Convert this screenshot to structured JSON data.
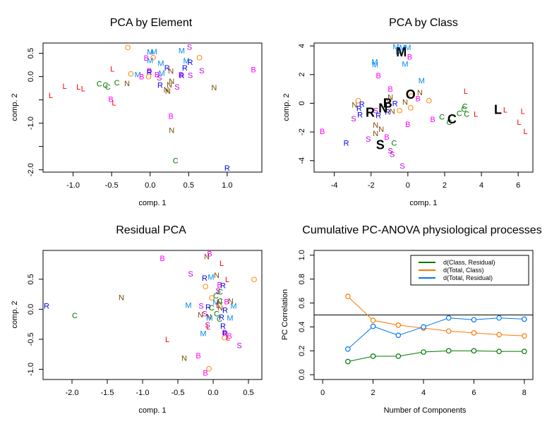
{
  "class_colors": {
    "B": "#ff00ff",
    "C": "#007700",
    "L": "#ff0000",
    "M": "#0088ee",
    "N": "#7a4a00",
    "O": "#ff8800",
    "R": "#0000ee",
    "S": "#bb00dd"
  },
  "chart_data": [
    {
      "type": "scatter",
      "title": "PCA by Element",
      "xlabel": "comp. 1",
      "ylabel": "comp. 2",
      "xticks": [
        -1.0,
        -0.5,
        0.0,
        0.5,
        1.0
      ],
      "xtick_labels": [
        "-1.0",
        "-0.5",
        "0.0",
        "0.5",
        "1.0"
      ],
      "yticks": [
        0.5,
        0.0,
        -0.5,
        -1.0,
        -1.5,
        -2.0
      ],
      "ytick_labels": [
        "0.5",
        "0.0",
        "",
        "-1.0",
        "",
        "-2.0"
      ],
      "xlim": [
        -1.39,
        1.45
      ],
      "ylim": [
        -2.05,
        0.72
      ],
      "points": [
        {
          "label": "O",
          "x": -0.29,
          "y": 0.63
        },
        {
          "label": "S",
          "x": 0.51,
          "y": 0.64
        },
        {
          "label": "M",
          "x": 0.0,
          "y": 0.53
        },
        {
          "label": "M",
          "x": 0.05,
          "y": 0.54
        },
        {
          "label": "M",
          "x": 0.41,
          "y": 0.56
        },
        {
          "label": "B",
          "x": -0.05,
          "y": 0.4
        },
        {
          "label": "O",
          "x": 0.04,
          "y": 0.41
        },
        {
          "label": "M",
          "x": 0.0,
          "y": 0.35
        },
        {
          "label": "O",
          "x": 0.64,
          "y": 0.41
        },
        {
          "label": "M",
          "x": 0.47,
          "y": 0.34
        },
        {
          "label": "R",
          "x": 0.52,
          "y": 0.31
        },
        {
          "label": "M",
          "x": 0.14,
          "y": 0.29
        },
        {
          "label": "L",
          "x": -0.49,
          "y": 0.17
        },
        {
          "label": "R",
          "x": 0.22,
          "y": 0.19
        },
        {
          "label": "N",
          "x": 0.27,
          "y": 0.12
        },
        {
          "label": "R",
          "x": 0.45,
          "y": 0.19
        },
        {
          "label": "S",
          "x": 0.67,
          "y": 0.13
        },
        {
          "label": "B",
          "x": 1.34,
          "y": 0.15
        },
        {
          "label": "O",
          "x": -0.25,
          "y": 0.06
        },
        {
          "label": "M",
          "x": -0.16,
          "y": 0.05
        },
        {
          "label": "B",
          "x": -0.01,
          "y": 0.13
        },
        {
          "label": "R",
          "x": -0.01,
          "y": 0.1
        },
        {
          "label": "B",
          "x": -0.11,
          "y": 0.0
        },
        {
          "label": "O",
          "x": -0.02,
          "y": 0.0
        },
        {
          "label": "B",
          "x": 0.09,
          "y": 0.05
        },
        {
          "label": "M",
          "x": 0.15,
          "y": 0.08
        },
        {
          "label": "S",
          "x": 0.12,
          "y": -0.02
        },
        {
          "label": "B",
          "x": 0.4,
          "y": 0.05
        },
        {
          "label": "R",
          "x": 0.41,
          "y": 0.02
        },
        {
          "label": "S",
          "x": 0.52,
          "y": 0.03
        },
        {
          "label": "L",
          "x": -1.11,
          "y": -0.2
        },
        {
          "label": "L",
          "x": -0.93,
          "y": -0.22
        },
        {
          "label": "L",
          "x": -0.87,
          "y": -0.26
        },
        {
          "label": "C",
          "x": -0.66,
          "y": -0.15
        },
        {
          "label": "C",
          "x": -0.58,
          "y": -0.18
        },
        {
          "label": "C",
          "x": -0.55,
          "y": -0.22
        },
        {
          "label": "C",
          "x": -0.43,
          "y": -0.13
        },
        {
          "label": "N",
          "x": -0.3,
          "y": -0.14
        },
        {
          "label": "R",
          "x": 0.13,
          "y": -0.18
        },
        {
          "label": "N",
          "x": 0.28,
          "y": -0.1
        },
        {
          "label": "N",
          "x": 0.25,
          "y": -0.17
        },
        {
          "label": "S",
          "x": 0.35,
          "y": -0.22
        },
        {
          "label": "N",
          "x": 0.21,
          "y": -0.28
        },
        {
          "label": "N",
          "x": 0.23,
          "y": -0.31
        },
        {
          "label": "N",
          "x": 0.83,
          "y": -0.23
        },
        {
          "label": "L",
          "x": -1.29,
          "y": -0.4
        },
        {
          "label": "B",
          "x": -0.51,
          "y": -0.48
        },
        {
          "label": "L",
          "x": -0.47,
          "y": -0.56
        },
        {
          "label": "B",
          "x": 0.27,
          "y": -0.85
        },
        {
          "label": "N",
          "x": 0.28,
          "y": -1.15
        },
        {
          "label": "C",
          "x": 0.33,
          "y": -1.8
        },
        {
          "label": "R",
          "x": 1.0,
          "y": -1.96
        }
      ]
    },
    {
      "type": "scatter",
      "title": "PCA by Class",
      "xlabel": "comp. 1",
      "ylabel": "comp. 2",
      "xticks": [
        -4,
        -2,
        0,
        2,
        4,
        6
      ],
      "xtick_labels": [
        "-4",
        "-2",
        "0",
        "2",
        "4",
        "6"
      ],
      "yticks": [
        4,
        2,
        0,
        -2,
        -4
      ],
      "ytick_labels": [
        "4",
        "2",
        "0",
        "-2",
        "-4"
      ],
      "xlim": [
        -5.1,
        6.8
      ],
      "ylim": [
        -4.8,
        4.2
      ],
      "points": [
        {
          "label": "M",
          "x": -0.65,
          "y": 3.95
        },
        {
          "label": "M",
          "x": -0.3,
          "y": 3.9
        },
        {
          "label": "M",
          "x": 0.0,
          "y": 3.9
        },
        {
          "label": "M",
          "x": -0.5,
          "y": 3.6
        },
        {
          "label": "B",
          "x": 0.1,
          "y": 3.25
        },
        {
          "label": "M",
          "x": -1.8,
          "y": 2.9
        },
        {
          "label": "M",
          "x": -1.78,
          "y": 2.7
        },
        {
          "label": "M",
          "x": -0.15,
          "y": 2.75
        },
        {
          "label": "B",
          "x": -1.6,
          "y": 1.95
        },
        {
          "label": "M",
          "x": 0.75,
          "y": 1.6
        },
        {
          "label": "B",
          "x": -0.95,
          "y": 1.0
        },
        {
          "label": "L",
          "x": 3.15,
          "y": 0.85
        },
        {
          "label": "N",
          "x": 0.65,
          "y": 0.75
        },
        {
          "label": "N",
          "x": -0.95,
          "y": 0.45
        },
        {
          "label": "O",
          "x": 0.2,
          "y": 0.5
        },
        {
          "label": "B",
          "x": 0.55,
          "y": 0.35
        },
        {
          "label": "O",
          "x": 1.15,
          "y": 0.2
        },
        {
          "label": "O",
          "x": -2.7,
          "y": 0.2
        },
        {
          "label": "N",
          "x": -1.1,
          "y": 0.2
        },
        {
          "label": "N",
          "x": -0.15,
          "y": 0.1
        },
        {
          "label": "R",
          "x": -0.7,
          "y": 0.0
        },
        {
          "label": "N",
          "x": -2.9,
          "y": -0.1
        },
        {
          "label": "R",
          "x": -2.5,
          "y": -0.05
        },
        {
          "label": "R",
          "x": -2.65,
          "y": -0.35
        },
        {
          "label": "O",
          "x": 0.15,
          "y": -0.3
        },
        {
          "label": "O",
          "x": -0.45,
          "y": -0.5
        },
        {
          "label": "S",
          "x": -1.75,
          "y": -0.5
        },
        {
          "label": "R",
          "x": -1.1,
          "y": -0.6
        },
        {
          "label": "N",
          "x": -0.85,
          "y": -0.55
        },
        {
          "label": "C",
          "x": 3.1,
          "y": -0.2
        },
        {
          "label": "C",
          "x": 3.05,
          "y": -0.4
        },
        {
          "label": "C",
          "x": 2.8,
          "y": -0.7
        },
        {
          "label": "C",
          "x": 3.2,
          "y": -0.75
        },
        {
          "label": "L",
          "x": 3.7,
          "y": -0.75
        },
        {
          "label": "L",
          "x": 5.3,
          "y": -0.45
        },
        {
          "label": "L",
          "x": 6.25,
          "y": -0.55
        },
        {
          "label": "L",
          "x": 6.05,
          "y": -1.3
        },
        {
          "label": "L",
          "x": 6.4,
          "y": -1.95
        },
        {
          "label": "C",
          "x": 1.85,
          "y": -0.95
        },
        {
          "label": "C",
          "x": 2.25,
          "y": -1.3
        },
        {
          "label": "B",
          "x": 1.35,
          "y": -1.1
        },
        {
          "label": "R",
          "x": -2.6,
          "y": -0.8
        },
        {
          "label": "R",
          "x": -1.6,
          "y": -0.85
        },
        {
          "label": "S",
          "x": -2.95,
          "y": -1.05
        },
        {
          "label": "B",
          "x": 0.0,
          "y": -1.45
        },
        {
          "label": "N",
          "x": -1.75,
          "y": -1.5
        },
        {
          "label": "N",
          "x": -1.45,
          "y": -1.8
        },
        {
          "label": "N",
          "x": -1.75,
          "y": -2.1
        },
        {
          "label": "B",
          "x": -4.65,
          "y": -1.95
        },
        {
          "label": "S",
          "x": -2.15,
          "y": -2.5
        },
        {
          "label": "B",
          "x": -1.15,
          "y": -2.35
        },
        {
          "label": "C",
          "x": -0.75,
          "y": -2.75
        },
        {
          "label": "R",
          "x": -3.35,
          "y": -2.75
        },
        {
          "label": "S",
          "x": -0.95,
          "y": -3.3
        },
        {
          "label": "S",
          "x": -0.85,
          "y": -3.55
        },
        {
          "label": "S",
          "x": -0.3,
          "y": -4.35
        }
      ],
      "centroids": [
        {
          "label": "M",
          "x": -0.35,
          "y": 3.55
        },
        {
          "label": "O",
          "x": 0.15,
          "y": 0.6
        },
        {
          "label": "B",
          "x": -1.1,
          "y": 0.0
        },
        {
          "label": "N",
          "x": -1.35,
          "y": -0.35
        },
        {
          "label": "R",
          "x": -2.05,
          "y": -0.65
        },
        {
          "label": "C",
          "x": 2.4,
          "y": -1.1
        },
        {
          "label": "L",
          "x": 4.9,
          "y": -0.45
        },
        {
          "label": "S",
          "x": -1.5,
          "y": -2.9
        }
      ]
    },
    {
      "type": "scatter",
      "title": "Residual PCA",
      "xlabel": "comp. 1",
      "ylabel": "comp. 2",
      "xticks": [
        -2.0,
        -1.5,
        -1.0,
        -0.5,
        0.0,
        0.5
      ],
      "xtick_labels": [
        "-2.0",
        "-1.5",
        "-1.0",
        "-0.5",
        "0.0",
        "0.5"
      ],
      "yticks": [
        0.5,
        0.0,
        -0.5,
        -1.0
      ],
      "ytick_labels": [
        "0.5",
        "0.0",
        "-0.5",
        "-1.0"
      ],
      "xlim": [
        -2.41,
        0.69
      ],
      "ylim": [
        -1.17,
        0.98
      ],
      "points": [
        {
          "label": "B",
          "x": -0.05,
          "y": 0.93
        },
        {
          "label": "N",
          "x": -0.09,
          "y": 0.88
        },
        {
          "label": "B",
          "x": -0.72,
          "y": 0.85
        },
        {
          "label": "L",
          "x": 0.12,
          "y": 0.77
        },
        {
          "label": "S",
          "x": -0.32,
          "y": 0.59
        },
        {
          "label": "N",
          "x": 0.05,
          "y": 0.57
        },
        {
          "label": "R",
          "x": -0.12,
          "y": 0.52
        },
        {
          "label": "M",
          "x": -0.03,
          "y": 0.54
        },
        {
          "label": "L",
          "x": 0.2,
          "y": 0.5
        },
        {
          "label": "O",
          "x": 0.58,
          "y": 0.5
        },
        {
          "label": "O",
          "x": -0.11,
          "y": 0.38
        },
        {
          "label": "B",
          "x": 0.09,
          "y": 0.41
        },
        {
          "label": "R",
          "x": 0.14,
          "y": 0.4
        },
        {
          "label": "S",
          "x": 0.07,
          "y": 0.31
        },
        {
          "label": "C",
          "x": 0.1,
          "y": 0.29
        },
        {
          "label": "C",
          "x": 0.04,
          "y": 0.23
        },
        {
          "label": "O",
          "x": -0.02,
          "y": 0.19
        },
        {
          "label": "N",
          "x": -1.3,
          "y": 0.2
        },
        {
          "label": "C",
          "x": 0.1,
          "y": 0.14
        },
        {
          "label": "M",
          "x": 0.04,
          "y": 0.12
        },
        {
          "label": "N",
          "x": 0.09,
          "y": 0.12
        },
        {
          "label": "B",
          "x": 0.19,
          "y": 0.13
        },
        {
          "label": "N",
          "x": 0.25,
          "y": 0.14
        },
        {
          "label": "R",
          "x": -2.36,
          "y": 0.06
        },
        {
          "label": "M",
          "x": -0.35,
          "y": 0.07
        },
        {
          "label": "S",
          "x": -0.17,
          "y": 0.06
        },
        {
          "label": "R",
          "x": -0.07,
          "y": 0.04
        },
        {
          "label": "C",
          "x": -0.02,
          "y": 0.03
        },
        {
          "label": "L",
          "x": 0.07,
          "y": 0.07
        },
        {
          "label": "N",
          "x": 0.1,
          "y": 0.03
        },
        {
          "label": "M",
          "x": 0.29,
          "y": 0.06
        },
        {
          "label": "R",
          "x": 0.17,
          "y": -0.01
        },
        {
          "label": "C",
          "x": -1.96,
          "y": -0.1
        },
        {
          "label": "S",
          "x": -0.12,
          "y": -0.07
        },
        {
          "label": "N",
          "x": -0.18,
          "y": -0.09
        },
        {
          "label": "C",
          "x": 0.05,
          "y": -0.07
        },
        {
          "label": "N",
          "x": -0.06,
          "y": -0.12
        },
        {
          "label": "M",
          "x": -0.05,
          "y": -0.14
        },
        {
          "label": "R",
          "x": 0.12,
          "y": -0.13
        },
        {
          "label": "M",
          "x": 0.24,
          "y": -0.14
        },
        {
          "label": "C",
          "x": 0.09,
          "y": -0.16
        },
        {
          "label": "S",
          "x": -0.08,
          "y": -0.26
        },
        {
          "label": "L",
          "x": -0.07,
          "y": -0.29
        },
        {
          "label": "R",
          "x": 0.14,
          "y": -0.28
        },
        {
          "label": "M",
          "x": -0.14,
          "y": -0.4
        },
        {
          "label": "B",
          "x": 0.16,
          "y": -0.38
        },
        {
          "label": "R",
          "x": 0.17,
          "y": -0.4
        },
        {
          "label": "L",
          "x": -0.65,
          "y": -0.5
        },
        {
          "label": "O",
          "x": 0.16,
          "y": -0.47
        },
        {
          "label": "L",
          "x": 0.21,
          "y": -0.47
        },
        {
          "label": "B",
          "x": 0.23,
          "y": -0.44
        },
        {
          "label": "S",
          "x": 0.37,
          "y": -0.6
        },
        {
          "label": "B",
          "x": -0.21,
          "y": -0.77
        },
        {
          "label": "N",
          "x": -0.41,
          "y": -0.81
        },
        {
          "label": "O",
          "x": -0.06,
          "y": -0.99
        },
        {
          "label": "B",
          "x": -0.11,
          "y": -1.06
        }
      ]
    },
    {
      "type": "line",
      "title": "Cumulative PC-ANOVA physiological processes",
      "xlabel": "Number of Components",
      "ylabel": "PC Correlation",
      "xticks": [
        0,
        2,
        4,
        6,
        8
      ],
      "xtick_labels": [
        "0",
        "2",
        "4",
        "6",
        "8"
      ],
      "yticks": [
        0.0,
        0.2,
        0.4,
        0.6,
        0.8,
        1.0
      ],
      "ytick_labels": [
        "0.0",
        "0.2",
        "0.4",
        "0.6",
        "0.8",
        "1.0"
      ],
      "xlim": [
        -0.34,
        8.34
      ],
      "ylim": [
        -0.04,
        1.04
      ],
      "hline": 0.5,
      "legend_position": "top-right",
      "x": [
        1,
        2,
        3,
        4,
        5,
        6,
        7,
        8
      ],
      "series": [
        {
          "name": "d(Class, Residual)",
          "color": "#007700",
          "values": [
            0.11,
            0.155,
            0.155,
            0.19,
            0.2,
            0.2,
            0.195,
            0.195
          ]
        },
        {
          "name": "d(Total, Class)",
          "color": "#ff7700",
          "values": [
            0.655,
            0.455,
            0.415,
            0.39,
            0.365,
            0.35,
            0.335,
            0.325
          ]
        },
        {
          "name": "d(Total, Residual)",
          "color": "#0077ee",
          "values": [
            0.215,
            0.405,
            0.33,
            0.4,
            0.475,
            0.46,
            0.475,
            0.465
          ]
        }
      ]
    }
  ]
}
